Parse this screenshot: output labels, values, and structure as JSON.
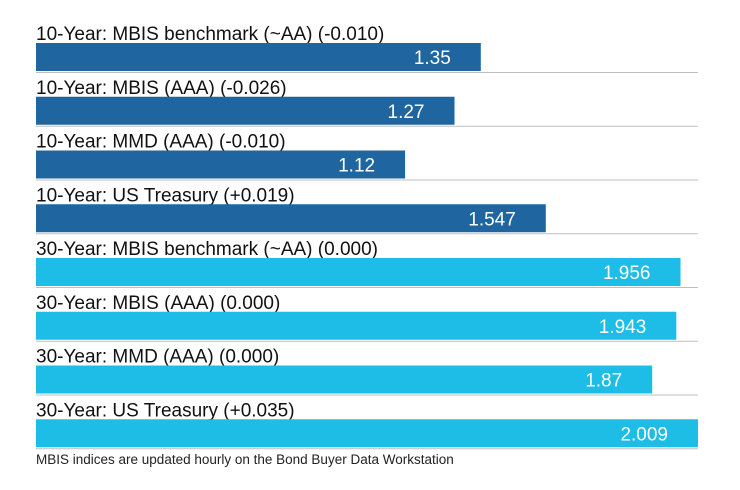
{
  "chart_data": {
    "type": "bar",
    "orientation": "horizontal",
    "categories": [
      "10-Year: MBIS benchmark (~AA) (-0.010)",
      "10-Year: MBIS (AAA) (-0.026)",
      "10-Year: MMD (AAA) (-0.010)",
      "10-Year: US Treasury (+0.019)",
      "30-Year: MBIS benchmark (~AA) (0.000)",
      "30-Year: MBIS (AAA) (0.000)",
      "30-Year: MMD (AAA) (0.000)",
      "30-Year: US Treasury (+0.035)"
    ],
    "values": [
      1.35,
      1.27,
      1.12,
      1.547,
      1.956,
      1.943,
      1.87,
      2.009
    ],
    "value_labels": [
      "1.35",
      "1.27",
      "1.12",
      "1.547",
      "1.956",
      "1.943",
      "1.87",
      "2.009"
    ],
    "xlim": [
      0,
      2.009
    ],
    "grid": false,
    "legend": "none",
    "colors": {
      "ten_year": "#1f66a0",
      "thirty_year": "#1ebde8",
      "divider": "#bfbfbf",
      "value_text": "#ffffff"
    },
    "bar_color_keys": [
      "ten_year",
      "ten_year",
      "ten_year",
      "ten_year",
      "thirty_year",
      "thirty_year",
      "thirty_year",
      "thirty_year"
    ]
  },
  "footnote": "MBIS indices are updated hourly on the Bond Buyer Data Workstation"
}
